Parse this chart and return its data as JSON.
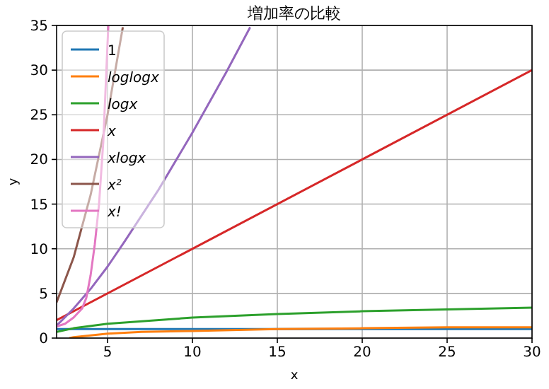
{
  "chart_data": {
    "type": "line",
    "title": "増加率の比較",
    "xlabel": "x",
    "ylabel": "y",
    "xlim": [
      2,
      30
    ],
    "xticks": [
      5,
      10,
      15,
      20,
      25,
      30
    ],
    "ylim": [
      0,
      35
    ],
    "yticks": [
      0,
      5,
      10,
      15,
      20,
      25,
      30,
      35
    ],
    "grid": true,
    "legend": "top left",
    "marker": "none",
    "line_style": "solid",
    "series": [
      {
        "name": "1",
        "color": "#1f77b4",
        "x": [
          2,
          30
        ],
        "values": [
          1,
          1
        ]
      },
      {
        "name": "loglogx",
        "color": "#ff7f0e",
        "x": [
          2.75,
          3,
          4,
          5,
          7,
          10,
          15,
          20,
          25,
          30
        ],
        "values": [
          0,
          0.1,
          0.3,
          0.5,
          0.7,
          0.8,
          1.0,
          1.1,
          1.2,
          1.2
        ]
      },
      {
        "name": "logx",
        "color": "#2ca02c",
        "x": [
          2,
          3,
          5,
          10,
          15,
          20,
          25,
          30
        ],
        "values": [
          0.7,
          1.1,
          1.6,
          2.3,
          2.7,
          3.0,
          3.2,
          3.4
        ]
      },
      {
        "name": "x",
        "color": "#d62728",
        "x": [
          2,
          30
        ],
        "values": [
          2,
          30
        ]
      },
      {
        "name": "xlogx",
        "color": "#9467bd",
        "x": [
          2,
          3,
          4,
          5,
          6,
          8,
          10,
          12,
          13.4
        ],
        "values": [
          1.4,
          3.3,
          5.5,
          8,
          10.8,
          16.6,
          23,
          29.8,
          34.8
        ]
      },
      {
        "name": "x²",
        "color": "#8c564b",
        "x": [
          2,
          3,
          4,
          5,
          5.9
        ],
        "values": [
          4,
          9,
          16,
          25,
          34.8
        ]
      },
      {
        "name": "x!",
        "color": "#e377c2",
        "x": [
          2,
          2.5,
          3,
          3.5,
          3.75,
          4,
          4.25,
          4.5,
          4.75,
          5,
          5.05
        ],
        "values": [
          1.3,
          1.6,
          2.3,
          3.3,
          4.5,
          7,
          10.5,
          15,
          22,
          33,
          35
        ]
      }
    ]
  }
}
